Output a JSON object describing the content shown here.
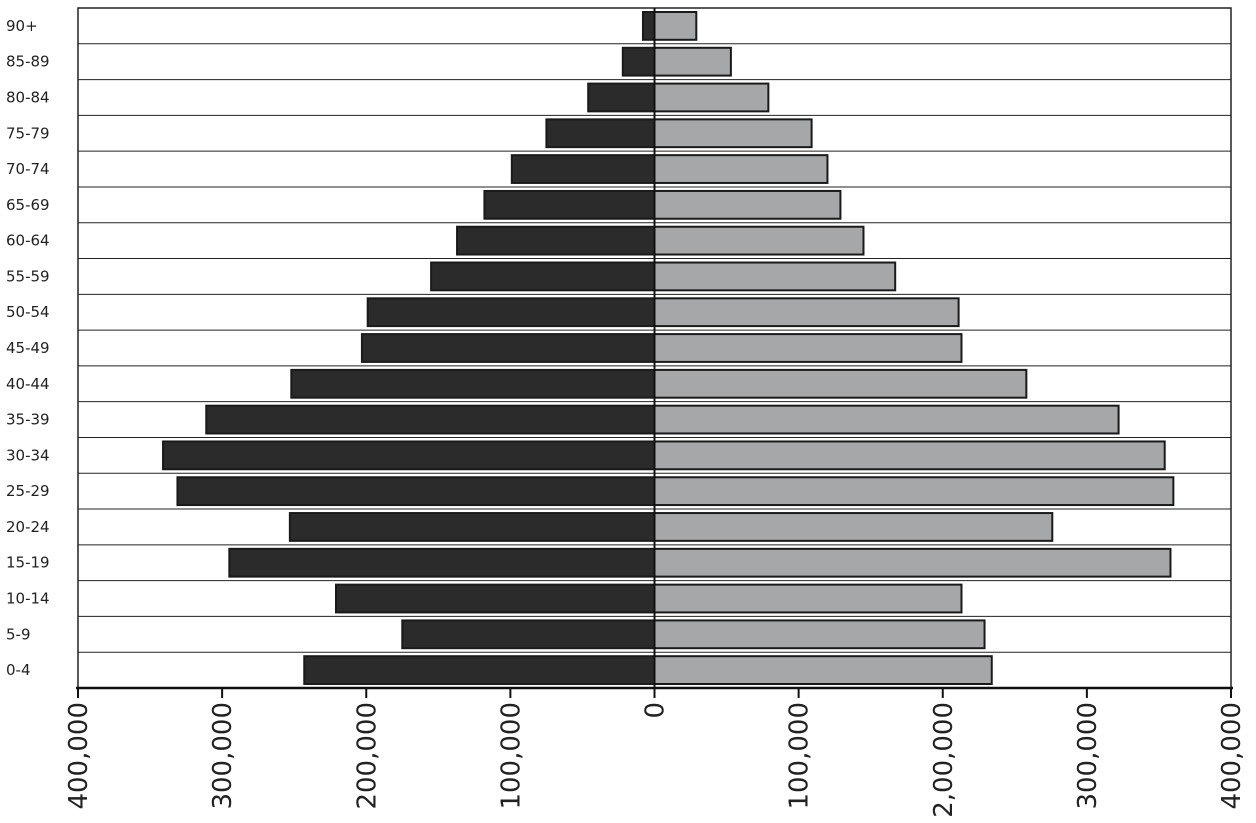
{
  "chart_data": {
    "type": "bar",
    "orientation": "horizontal",
    "layout": "population-pyramid",
    "categories": [
      "0-4",
      "5-9",
      "10-14",
      "15-19",
      "20-24",
      "25-29",
      "30-34",
      "35-39",
      "40-44",
      "45-49",
      "50-54",
      "55-59",
      "60-64",
      "65-69",
      "70-74",
      "75-79",
      "80-84",
      "85-89",
      "90+"
    ],
    "series": [
      {
        "side": "left",
        "color": "#2b2b2b",
        "values": [
          243000,
          175000,
          221000,
          295000,
          253000,
          331000,
          341000,
          311000,
          252000,
          203000,
          199000,
          155000,
          137000,
          118000,
          99000,
          75000,
          46000,
          22000,
          8000
        ]
      },
      {
        "side": "right",
        "color": "#a6a7a9",
        "values": [
          234000,
          229000,
          213000,
          358000,
          276000,
          360000,
          354000,
          322000,
          258000,
          213000,
          211000,
          167000,
          145000,
          129000,
          120000,
          109000,
          79000,
          53000,
          29000
        ]
      }
    ],
    "xlim": [
      -400000,
      400000
    ],
    "x_ticks": [
      {
        "value": -400000,
        "label": "400,000"
      },
      {
        "value": -300000,
        "label": "300,000"
      },
      {
        "value": -200000,
        "label": "200,000"
      },
      {
        "value": -100000,
        "label": "100,000"
      },
      {
        "value": 0,
        "label": "0"
      },
      {
        "value": 100000,
        "label": "100,000"
      },
      {
        "value": 200000,
        "label": "2,00,000"
      },
      {
        "value": 300000,
        "label": "300,000"
      },
      {
        "value": 400000,
        "label": "400,000"
      }
    ],
    "xlabel": "",
    "ylabel": "",
    "title": "",
    "grid": "horizontal-row-lines",
    "legend": "none"
  }
}
